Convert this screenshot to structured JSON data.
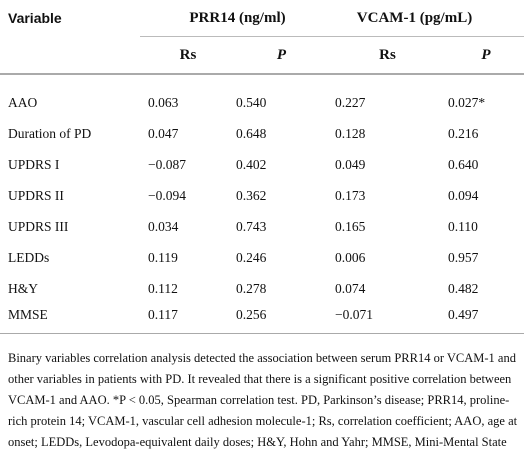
{
  "table": {
    "header": [
      "Variable",
      "PRR14 (ng/ml)",
      "VCAM-1 (pg/mL)"
    ],
    "subheader": [
      "Rs",
      "P",
      "Rs",
      "P"
    ],
    "rows": [
      [
        "AAO",
        "0.063",
        "0.540",
        "0.227",
        "0.027*"
      ],
      [
        "Duration of PD",
        "0.047",
        "0.648",
        "0.128",
        "0.216"
      ],
      [
        "UPDRS I",
        "−0.087",
        "0.402",
        "0.049",
        "0.640"
      ],
      [
        "UPDRS II",
        "−0.094",
        "0.362",
        "0.173",
        "0.094"
      ],
      [
        "UPDRS III",
        "0.034",
        "0.743",
        "0.165",
        "0.110"
      ],
      [
        "LEDDs",
        "0.119",
        "0.246",
        "0.006",
        "0.957"
      ],
      [
        "H&Y",
        "0.112",
        "0.278",
        "0.074",
        "0.482"
      ],
      [
        "MMSE",
        "0.117",
        "0.256",
        "−0.071",
        "0.497"
      ]
    ]
  },
  "footnote": "Binary variables correlation analysis detected the association between serum PRR14 or VCAM-1 and other variables in patients with PD. It revealed that there is a significant positive correlation between VCAM-1 and AAO. *P < 0.05, Spearman correlation test. PD, Parkinson’s disease; PRR14, proline-rich protein 14; VCAM-1, vascular cell adhesion molecule-1; Rs, correlation coefficient; AAO, age at onset; LEDDs, Levodopa-equivalent daily doses; H&Y, Hohn and Yahr; MMSE, Mini-Mental State Examination."
}
